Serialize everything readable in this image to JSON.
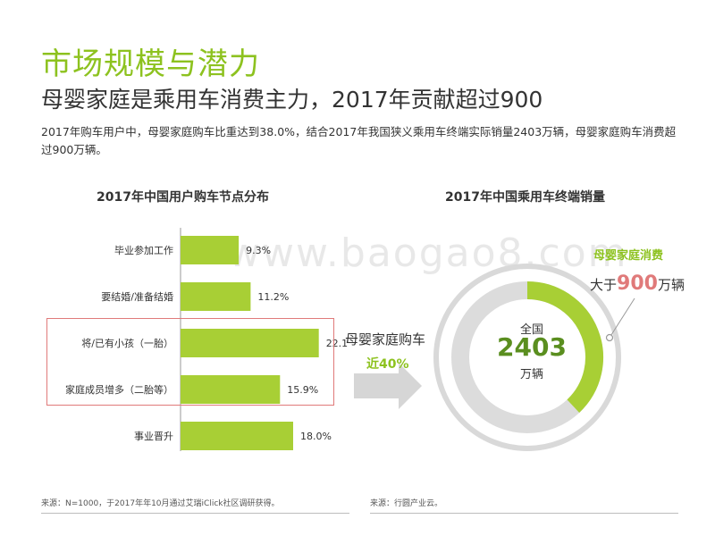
{
  "title": "市场规模与潜力",
  "subtitle": "母婴家庭是乘用车消费主力，2017年贡献超过900",
  "description": "2017年购车用户中，母婴家庭购车比重达到38.0%，结合2017年我国狭义乘用车终端实际销量2403万辆，母婴家庭购车消费超过900万辆。",
  "watermark": "www.baogao8.com",
  "arrow": {
    "label": "母婴家庭购车",
    "percent": "近40%"
  },
  "callout": {
    "label": "母婴家庭消费",
    "prefix": "大于",
    "value": "900",
    "suffix": "万辆"
  },
  "ring": {
    "top_label": "全国",
    "value": "2403",
    "bottom_label": "万辆",
    "share_fraction": 0.38
  },
  "sources": {
    "left": "来源：N=1000，于2017年年10月通过艾瑞iClick社区调研获得。",
    "right": "来源：行圆产业云。"
  },
  "colors": {
    "accent": "#8dc21f",
    "bar": "#a8cf35",
    "highlight": "#e07a7a",
    "ring_bg": "#d9d9d9"
  },
  "chart_data": [
    {
      "type": "bar",
      "orientation": "horizontal",
      "title": "2017年中国用户购车节点分布",
      "categories": [
        "毕业参加工作",
        "要结婚/准备结婚",
        "将/已有小孩（一胎）",
        "家庭成员增多（二胎等）",
        "事业晋升"
      ],
      "values": [
        9.3,
        11.2,
        22.1,
        15.9,
        18.0
      ],
      "value_labels": [
        "9.3%",
        "11.2%",
        "22.1%",
        "15.9%",
        "18.0%"
      ],
      "xlim": [
        0,
        25
      ],
      "grid": false,
      "highlighted_categories": [
        "将/已有小孩（一胎）",
        "家庭成员增多（二胎等）"
      ]
    },
    {
      "type": "pie",
      "style": "donut",
      "title": "2017年中国乘用车终端销量",
      "center_text": [
        "全国",
        "2403",
        "万辆"
      ],
      "slices": [
        {
          "label": "母婴家庭消费",
          "value": 38.0
        },
        {
          "label": "",
          "value": 62.0
        }
      ]
    }
  ]
}
